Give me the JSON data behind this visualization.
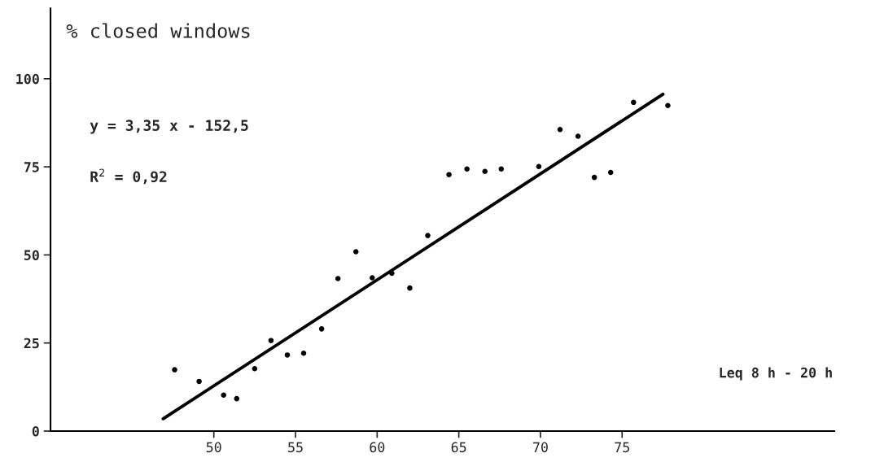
{
  "chart_data": {
    "type": "scatter",
    "xlabel": "Leq 8 h - 20 h",
    "ylabel": "% closed windows",
    "annotations": [
      "y = 3,35 x - 152,5",
      "R$^{2}$ = 0,92"
    ],
    "series": [
      {
        "color": "#000000",
        "marker": "circle",
        "x": [
          47.6,
          49.1,
          50.6,
          51.4,
          52.5,
          53.5,
          54.5,
          55.5,
          56.6,
          57.6,
          58.7,
          59.7,
          60.9,
          62.0,
          63.1,
          64.4,
          65.5,
          66.6,
          67.6,
          69.9,
          71.2,
          72.3,
          73.3,
          74.3,
          75.7,
          77.8
        ],
        "values": [
          17.4,
          14.1,
          10.2,
          9.2,
          17.7,
          25.7,
          21.6,
          22.1,
          29.0,
          43.3,
          50.9,
          43.5,
          44.8,
          40.6,
          55.5,
          72.8,
          74.4,
          73.7,
          74.4,
          75.1,
          85.6,
          83.7,
          72.0,
          73.4,
          93.3,
          92.4
        ]
      },
      {
        "type": "line",
        "color": "#000000",
        "x": [
          46.9,
          77.5
        ],
        "values": [
          3.5,
          95.6
        ]
      }
    ],
    "xlim": [
      40,
      88
    ],
    "ylim": [
      0,
      120
    ],
    "xticks": [
      50,
      55,
      60,
      65,
      70,
      75
    ],
    "yticks": [
      0,
      25,
      50,
      75,
      100
    ],
    "grid": false,
    "legend": false
  }
}
